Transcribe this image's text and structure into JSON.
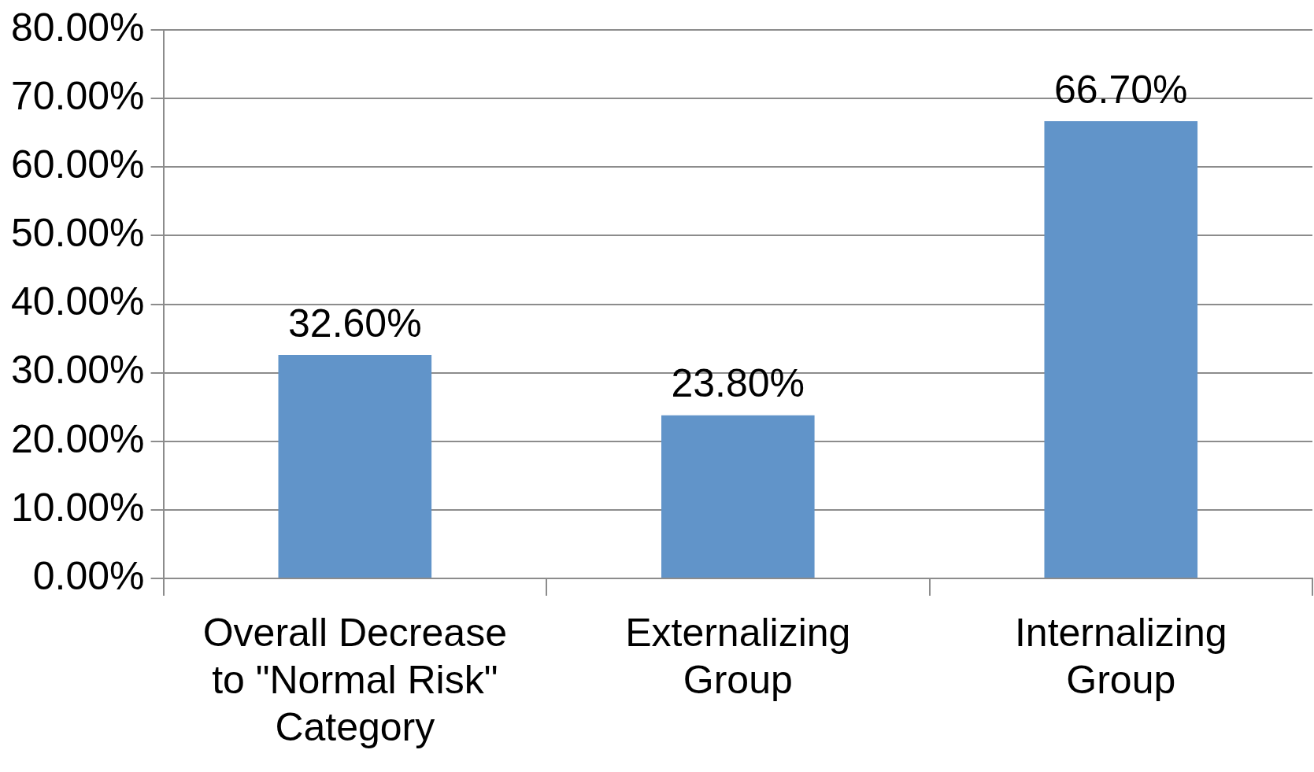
{
  "chart_data": {
    "type": "bar",
    "categories": [
      "Overall Decrease to \"Normal Risk\" Category",
      "Externalizing Group",
      "Internalizing Group"
    ],
    "values": [
      32.6,
      23.8,
      66.7
    ],
    "value_labels": [
      "32.60%",
      "23.80%",
      "66.70%"
    ],
    "color": "#6194c9",
    "ylim": [
      0,
      80
    ],
    "yticks": [
      {
        "value": 0,
        "label": "0.00%"
      },
      {
        "value": 10,
        "label": "10.00%"
      },
      {
        "value": 20,
        "label": "20.00%"
      },
      {
        "value": 30,
        "label": "30.00%"
      },
      {
        "value": 40,
        "label": "40.00%"
      },
      {
        "value": 50,
        "label": "50.00%"
      },
      {
        "value": 60,
        "label": "60.00%"
      },
      {
        "value": 70,
        "label": "70.00%"
      },
      {
        "value": 80,
        "label": "80.00%"
      }
    ],
    "grid": "y",
    "legend": false
  }
}
